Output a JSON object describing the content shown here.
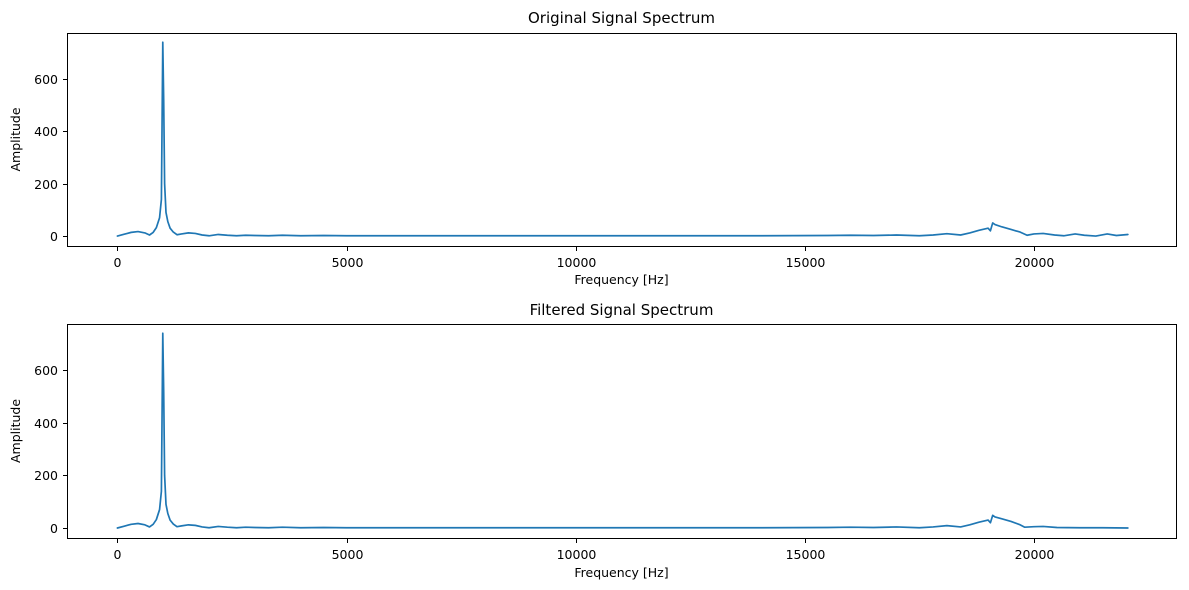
{
  "chart_data": [
    {
      "type": "line",
      "title": "Original Signal Spectrum",
      "xlabel": "Frequency [Hz]",
      "ylabel": "Amplitude",
      "xlim": [
        -1100,
        23100
      ],
      "ylim": [
        -38,
        775
      ],
      "xticks": [
        0,
        5000,
        10000,
        15000,
        20000
      ],
      "yticks": [
        0,
        200,
        400,
        600
      ],
      "grid": false,
      "series": [
        {
          "color": "#1f77b4",
          "points": [
            [
              0,
              0
            ],
            [
              150,
              7
            ],
            [
              300,
              14
            ],
            [
              450,
              17
            ],
            [
              600,
              12
            ],
            [
              700,
              4
            ],
            [
              780,
              14
            ],
            [
              850,
              32
            ],
            [
              920,
              70
            ],
            [
              960,
              140
            ],
            [
              990,
              740
            ],
            [
              1010,
              520
            ],
            [
              1030,
              200
            ],
            [
              1060,
              90
            ],
            [
              1100,
              55
            ],
            [
              1150,
              30
            ],
            [
              1220,
              15
            ],
            [
              1300,
              5
            ],
            [
              1400,
              8
            ],
            [
              1550,
              12
            ],
            [
              1700,
              10
            ],
            [
              1850,
              4
            ],
            [
              2000,
              1
            ],
            [
              2200,
              6
            ],
            [
              2400,
              3
            ],
            [
              2600,
              1
            ],
            [
              2800,
              3
            ],
            [
              3000,
              2
            ],
            [
              3300,
              1
            ],
            [
              3600,
              3
            ],
            [
              4000,
              1
            ],
            [
              4500,
              2
            ],
            [
              5000,
              1
            ],
            [
              6000,
              1
            ],
            [
              8000,
              1
            ],
            [
              10000,
              1
            ],
            [
              12000,
              1
            ],
            [
              14000,
              1
            ],
            [
              15500,
              2
            ],
            [
              16000,
              3
            ],
            [
              16500,
              2
            ],
            [
              17000,
              4
            ],
            [
              17500,
              1
            ],
            [
              17800,
              4
            ],
            [
              18100,
              9
            ],
            [
              18400,
              4
            ],
            [
              18600,
              12
            ],
            [
              18800,
              22
            ],
            [
              19000,
              30
            ],
            [
              19050,
              20
            ],
            [
              19100,
              50
            ],
            [
              19150,
              44
            ],
            [
              19300,
              35
            ],
            [
              19500,
              25
            ],
            [
              19700,
              15
            ],
            [
              19850,
              3
            ],
            [
              20000,
              8
            ],
            [
              20200,
              10
            ],
            [
              20450,
              4
            ],
            [
              20650,
              1
            ],
            [
              20900,
              8
            ],
            [
              21100,
              3
            ],
            [
              21350,
              0
            ],
            [
              21600,
              8
            ],
            [
              21800,
              2
            ],
            [
              22050,
              6
            ]
          ]
        }
      ]
    },
    {
      "type": "line",
      "title": "Filtered Signal Spectrum",
      "xlabel": "Frequency [Hz]",
      "ylabel": "Amplitude",
      "xlim": [
        -1100,
        23100
      ],
      "ylim": [
        -38,
        775
      ],
      "xticks": [
        0,
        5000,
        10000,
        15000,
        20000
      ],
      "yticks": [
        0,
        200,
        400,
        600
      ],
      "grid": false,
      "series": [
        {
          "color": "#1f77b4",
          "points": [
            [
              0,
              0
            ],
            [
              150,
              7
            ],
            [
              300,
              14
            ],
            [
              450,
              17
            ],
            [
              600,
              12
            ],
            [
              700,
              4
            ],
            [
              780,
              14
            ],
            [
              850,
              32
            ],
            [
              920,
              70
            ],
            [
              960,
              140
            ],
            [
              990,
              740
            ],
            [
              1010,
              520
            ],
            [
              1030,
              200
            ],
            [
              1060,
              90
            ],
            [
              1100,
              55
            ],
            [
              1150,
              30
            ],
            [
              1220,
              15
            ],
            [
              1300,
              5
            ],
            [
              1400,
              8
            ],
            [
              1550,
              12
            ],
            [
              1700,
              10
            ],
            [
              1850,
              4
            ],
            [
              2000,
              1
            ],
            [
              2200,
              6
            ],
            [
              2400,
              3
            ],
            [
              2600,
              1
            ],
            [
              2800,
              3
            ],
            [
              3000,
              2
            ],
            [
              3300,
              1
            ],
            [
              3600,
              3
            ],
            [
              4000,
              1
            ],
            [
              4500,
              2
            ],
            [
              5000,
              1
            ],
            [
              6000,
              1
            ],
            [
              8000,
              1
            ],
            [
              10000,
              1
            ],
            [
              12000,
              1
            ],
            [
              14000,
              1
            ],
            [
              15500,
              2
            ],
            [
              16000,
              3
            ],
            [
              16500,
              2
            ],
            [
              17000,
              4
            ],
            [
              17500,
              1
            ],
            [
              17800,
              4
            ],
            [
              18100,
              9
            ],
            [
              18400,
              4
            ],
            [
              18600,
              12
            ],
            [
              18800,
              22
            ],
            [
              19000,
              30
            ],
            [
              19050,
              20
            ],
            [
              19100,
              48
            ],
            [
              19150,
              42
            ],
            [
              19300,
              35
            ],
            [
              19500,
              25
            ],
            [
              19700,
              12
            ],
            [
              19800,
              3
            ],
            [
              20000,
              5
            ],
            [
              20200,
              6
            ],
            [
              20500,
              2
            ],
            [
              21000,
              1
            ],
            [
              21500,
              1
            ],
            [
              22050,
              0
            ]
          ]
        }
      ]
    }
  ]
}
